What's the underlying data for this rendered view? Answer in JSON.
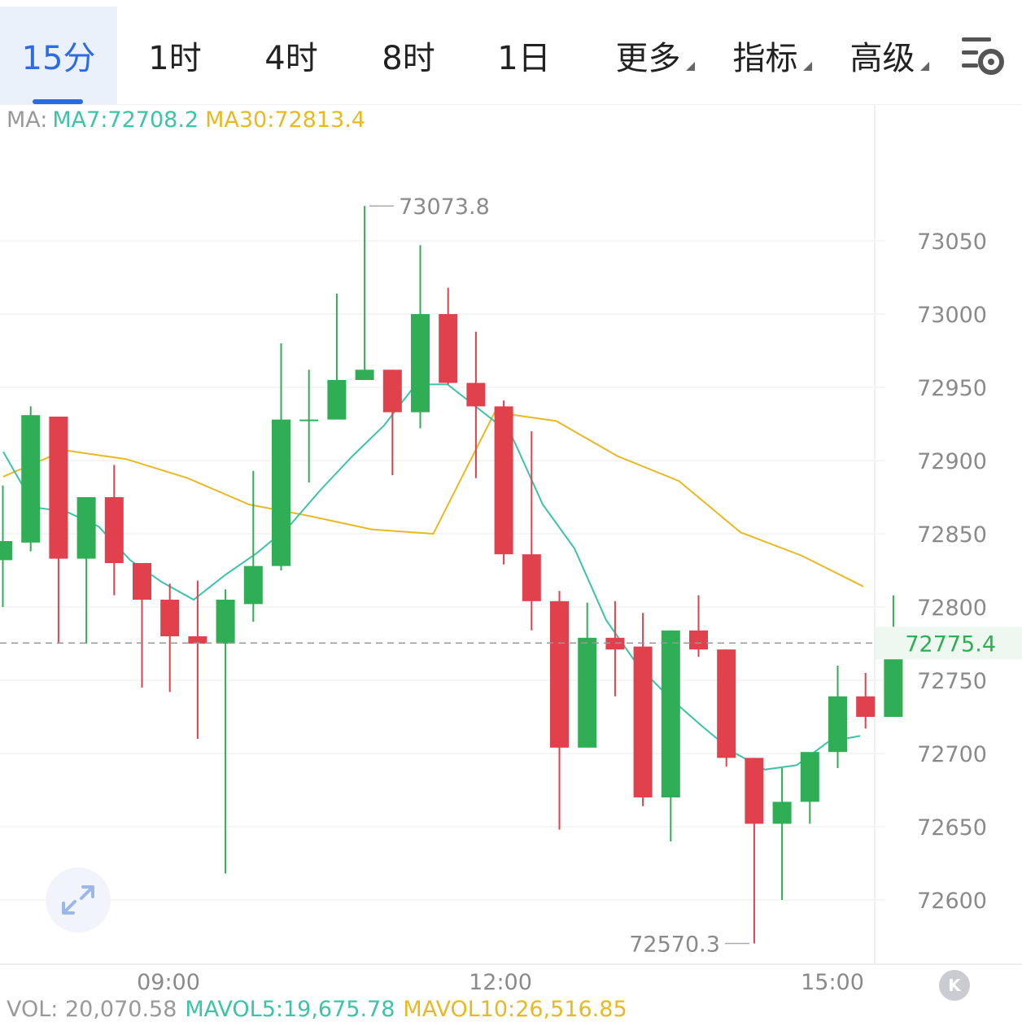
{
  "tabs": [
    {
      "label": "15分",
      "active": true
    },
    {
      "label": "1时"
    },
    {
      "label": "4时"
    },
    {
      "label": "8时"
    },
    {
      "label": "1日"
    },
    {
      "label": "更多",
      "dropdown": true
    },
    {
      "label": "指标",
      "dropdown": true
    },
    {
      "label": "高级",
      "dropdown": true
    }
  ],
  "settings_icon": "chart-settings-icon",
  "ma": {
    "label": "MA:",
    "ma7": "MA7:72708.2",
    "ma30": "MA30:72813.4"
  },
  "vol": {
    "label": "VOL: 20,070.58",
    "mavol5": "MAVOL5:19,675.78",
    "mavol10": "MAVOL10:26,516.85"
  },
  "k_button": "K",
  "colors": {
    "up": "#2fae55",
    "down": "#e0414d",
    "ma7": "#3cc3a8",
    "ma30": "#e8b923",
    "active_tab": "#2d6be4",
    "current_price": "#2fae55"
  },
  "chart_data": {
    "type": "candlestick",
    "interval": "15分",
    "x_tick_labels": [
      "09:00",
      "12:00",
      "15:00"
    ],
    "y_ticks": [
      73050,
      73000,
      72950,
      72900,
      72850,
      72800,
      72750,
      72700,
      72650,
      72600
    ],
    "ylim": [
      72540,
      73122
    ],
    "current_price": "72775.4",
    "max_label": "73073.8",
    "min_label": "72570.3",
    "candles": [
      {
        "open": 72832,
        "high": 72883,
        "low": 72800,
        "close": 72845
      },
      {
        "open": 72844,
        "high": 72937,
        "low": 72838,
        "close": 72931
      },
      {
        "open": 72930,
        "high": 72930,
        "low": 72775,
        "close": 72833
      },
      {
        "open": 72833,
        "high": 72875,
        "low": 72775,
        "close": 72875
      },
      {
        "open": 72875,
        "high": 72897,
        "low": 72808,
        "close": 72830
      },
      {
        "open": 72830,
        "high": 72830,
        "low": 72745,
        "close": 72805
      },
      {
        "open": 72805,
        "high": 72816,
        "low": 72742,
        "close": 72780
      },
      {
        "open": 72780,
        "high": 72818,
        "low": 72710,
        "close": 72775
      },
      {
        "open": 72775,
        "high": 72812,
        "low": 72618,
        "close": 72805
      },
      {
        "open": 72802,
        "high": 72893,
        "low": 72790,
        "close": 72828
      },
      {
        "open": 72828,
        "high": 72980,
        "low": 72825,
        "close": 72928
      },
      {
        "open": 72928,
        "high": 72962,
        "low": 72885,
        "close": 72928
      },
      {
        "open": 72928,
        "high": 73014,
        "low": 72930,
        "close": 72955
      },
      {
        "open": 72955,
        "high": 73073.8,
        "low": 72955,
        "close": 72962
      },
      {
        "open": 72962,
        "high": 72962,
        "low": 72890,
        "close": 72933
      },
      {
        "open": 72933,
        "high": 73047,
        "low": 72922,
        "close": 73000
      },
      {
        "open": 73000,
        "high": 73018,
        "low": 72952,
        "close": 72953
      },
      {
        "open": 72953,
        "high": 72988,
        "low": 72888,
        "close": 72937
      },
      {
        "open": 72937,
        "high": 72941,
        "low": 72829,
        "close": 72836
      },
      {
        "open": 72836,
        "high": 72920,
        "low": 72784,
        "close": 72804
      },
      {
        "open": 72804,
        "high": 72811,
        "low": 72648,
        "close": 72704
      },
      {
        "open": 72704,
        "high": 72803,
        "low": 72704,
        "close": 72779
      },
      {
        "open": 72779,
        "high": 72804,
        "low": 72739,
        "close": 72771
      },
      {
        "open": 72773,
        "high": 72796,
        "low": 72664,
        "close": 72670
      },
      {
        "open": 72670,
        "high": 72784,
        "low": 72640,
        "close": 72784
      },
      {
        "open": 72784,
        "high": 72808,
        "low": 72766,
        "close": 72771
      },
      {
        "open": 72771,
        "high": 72771,
        "low": 72691,
        "close": 72697
      },
      {
        "open": 72697,
        "high": 72697,
        "low": 72570.3,
        "close": 72652
      },
      {
        "open": 72652,
        "high": 72690,
        "low": 72600,
        "close": 72667
      },
      {
        "open": 72667,
        "high": 72696,
        "low": 72652,
        "close": 72701
      },
      {
        "open": 72701,
        "high": 72760,
        "low": 72690,
        "close": 72739
      },
      {
        "open": 72739,
        "high": 72755,
        "low": 72717,
        "close": 72725
      },
      {
        "open": 72725,
        "high": 72808,
        "low": 72725,
        "close": 72775.4
      }
    ],
    "ma7": [
      72906,
      72868,
      72865,
      72855,
      72832,
      72817,
      72805,
      72822,
      72837,
      72855,
      72880,
      72903,
      72924,
      72952,
      72952,
      72935,
      72918,
      72870,
      72840,
      72791,
      72760,
      72738,
      72719,
      72701,
      72689,
      72692,
      72708,
      72712
    ],
    "ma30": [
      72889,
      72907,
      72901,
      72888,
      72870,
      72862,
      72853,
      72850,
      72933,
      72927,
      72903,
      72886,
      72851,
      72835,
      72814
    ]
  }
}
